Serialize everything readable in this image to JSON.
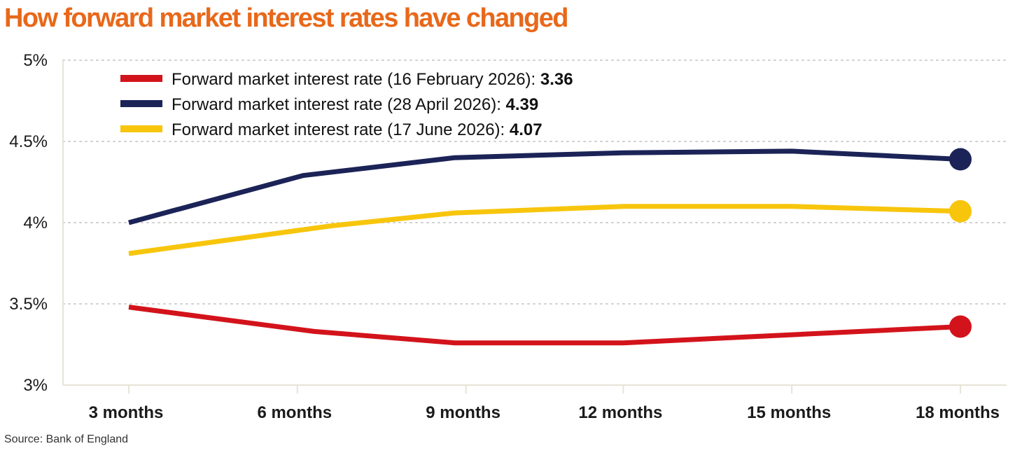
{
  "title": "How forward market interest rates have changed",
  "source": "Source: Bank of England",
  "colors": {
    "title": "#E8681A",
    "grid": "#cfcfcf",
    "axis": "#e6e4d6"
  },
  "chart_data": {
    "type": "line",
    "title": "How forward market interest rates have changed",
    "categories": [
      "3 months",
      "6 months",
      "9 months",
      "12 months",
      "15 months",
      "18 months"
    ],
    "x_points": [
      3.2,
      6.2,
      9.2,
      12,
      15,
      18
    ],
    "ylim": [
      3,
      5
    ],
    "yticks": [
      3,
      3.5,
      4,
      4.5,
      5
    ],
    "ytick_labels": [
      "3%",
      "3.5%",
      "4%",
      "4.5%",
      "5%"
    ],
    "grid": true,
    "legend_position": "top-left",
    "series": [
      {
        "name": "Forward market interest rate (16 February 2026): ",
        "final_label": "3.36",
        "color": "#D3131B",
        "points": [
          [
            3.2,
            3.48
          ],
          [
            6.5,
            3.33
          ],
          [
            9,
            3.26
          ],
          [
            12,
            3.26
          ],
          [
            15,
            3.31
          ],
          [
            18,
            3.36
          ]
        ]
      },
      {
        "name": "Forward market interest rate (28 April 2026): ",
        "final_label": "4.39",
        "color": "#1B2357",
        "points": [
          [
            3.2,
            4.0
          ],
          [
            6.3,
            4.29
          ],
          [
            9,
            4.4
          ],
          [
            12,
            4.43
          ],
          [
            15,
            4.44
          ],
          [
            18,
            4.39
          ]
        ]
      },
      {
        "name": "Forward market interest rate (17 June 2026): ",
        "final_label": "4.07",
        "color": "#F7C50C",
        "points": [
          [
            3.2,
            3.81
          ],
          [
            6.8,
            3.98
          ],
          [
            9,
            4.06
          ],
          [
            12,
            4.1
          ],
          [
            15,
            4.1
          ],
          [
            18,
            4.07
          ]
        ]
      }
    ]
  }
}
